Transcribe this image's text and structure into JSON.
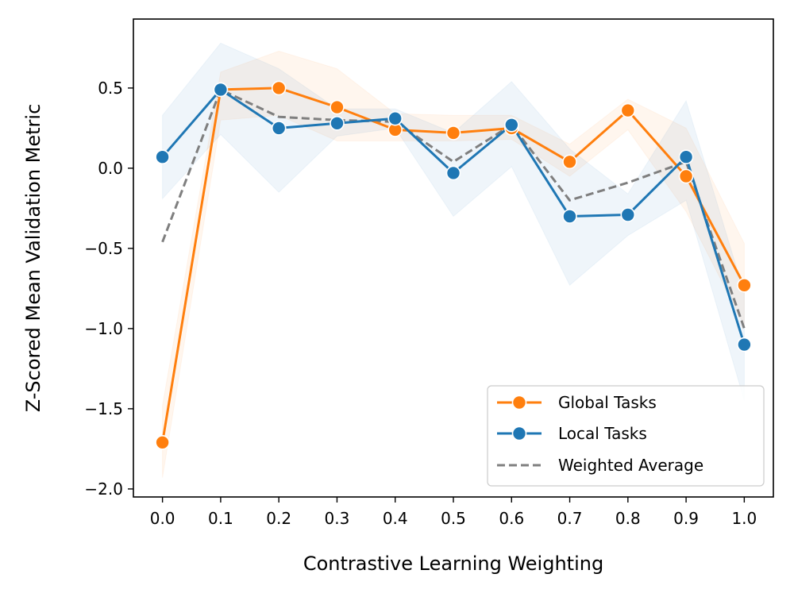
{
  "chart_data": {
    "type": "line",
    "title": "",
    "xlabel": "Contrastive Learning Weighting",
    "ylabel": "Z-Scored Mean Validation Metric",
    "x": [
      0.0,
      0.1,
      0.2,
      0.3,
      0.4,
      0.5,
      0.6,
      0.7,
      0.8,
      0.9,
      1.0
    ],
    "x_tick_labels": [
      "0.0",
      "0.1",
      "0.2",
      "0.3",
      "0.4",
      "0.5",
      "0.6",
      "0.7",
      "0.8",
      "0.9",
      "1.0"
    ],
    "y_ticks": [
      0.5,
      0.0,
      -0.5,
      -1.0,
      -1.5,
      -2.0
    ],
    "y_tick_labels": [
      "0.5",
      "0.0",
      "−0.5",
      "−1.0",
      "−1.5",
      "−2.0"
    ],
    "xlim": [
      -0.05,
      1.05
    ],
    "ylim": [
      -2.05,
      0.93
    ],
    "grid": false,
    "legend_position": "bottom-right",
    "series": [
      {
        "name": "Global Tasks",
        "color": "#ff7f0e",
        "marker": "circle",
        "linestyle": "solid",
        "values": [
          -1.71,
          0.49,
          0.5,
          0.38,
          0.24,
          0.22,
          0.25,
          0.04,
          0.36,
          -0.05,
          -0.73
        ],
        "ci_lower": [
          -1.93,
          0.3,
          0.33,
          0.17,
          0.17,
          0.17,
          0.18,
          -0.05,
          0.24,
          -0.27,
          -0.98
        ],
        "ci_upper": [
          -1.48,
          0.6,
          0.73,
          0.62,
          0.34,
          0.33,
          0.33,
          0.15,
          0.43,
          0.25,
          -0.47
        ]
      },
      {
        "name": "Local Tasks",
        "color": "#1f77b4",
        "marker": "circle",
        "linestyle": "solid",
        "values": [
          0.07,
          0.49,
          0.25,
          0.28,
          0.31,
          -0.03,
          0.27,
          -0.3,
          -0.29,
          0.07,
          -1.1
        ],
        "ci_lower": [
          -0.19,
          0.21,
          -0.15,
          0.2,
          0.25,
          -0.3,
          0.01,
          -0.73,
          -0.42,
          -0.2,
          -1.45
        ],
        "ci_upper": [
          0.33,
          0.78,
          0.62,
          0.37,
          0.37,
          0.22,
          0.54,
          0.12,
          -0.16,
          0.42,
          -0.78
        ]
      },
      {
        "name": "Weighted Average",
        "color": "#7f7f7f",
        "marker": "none",
        "linestyle": "dashed",
        "values": [
          -0.46,
          0.49,
          0.32,
          0.3,
          0.29,
          0.04,
          0.27,
          -0.2,
          -0.09,
          0.04,
          -1.0
        ]
      }
    ]
  }
}
